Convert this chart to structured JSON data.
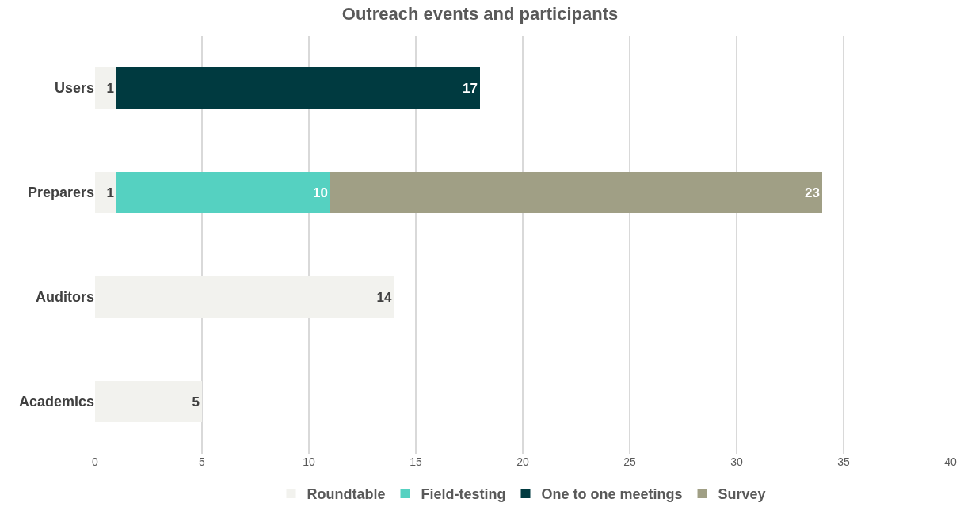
{
  "chart_data": {
    "type": "bar",
    "title": "Outreach events and participants",
    "orientation": "horizontal",
    "stacked": true,
    "categories": [
      "Users",
      "Preparers",
      "Auditors",
      "Academics"
    ],
    "series": [
      {
        "name": "Roundtable",
        "color": "#f2f2ee",
        "values": [
          1,
          1,
          14,
          5
        ]
      },
      {
        "name": "Field-testing",
        "color": "#55d1c1",
        "values": [
          null,
          10,
          null,
          null
        ]
      },
      {
        "name": "One to one meetings",
        "color": "#003a40",
        "values": [
          17,
          null,
          null,
          null
        ]
      },
      {
        "name": "Survey",
        "color": "#a09f85",
        "values": [
          null,
          23,
          null,
          null
        ]
      }
    ],
    "xlim": [
      0,
      40
    ],
    "xticks": [
      0,
      5,
      10,
      15,
      20,
      25,
      30,
      35,
      40
    ],
    "grid": "x",
    "legend": "bottom",
    "data_labels": true
  }
}
